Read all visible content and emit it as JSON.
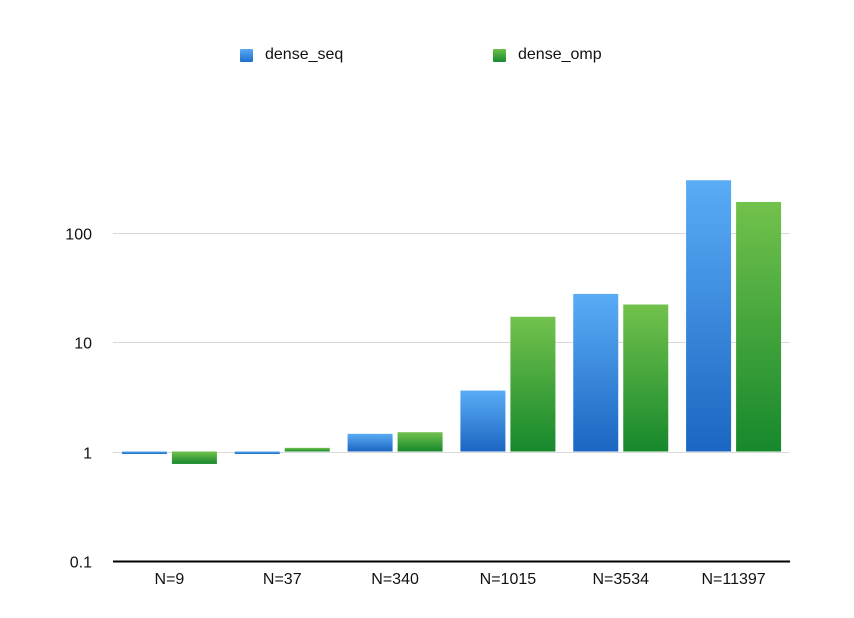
{
  "chart_data": {
    "type": "bar",
    "title": "",
    "xlabel": "",
    "ylabel": "",
    "y_scale": "log",
    "ylim": [
      0.1,
      1000
    ],
    "yticks": [
      "0.1",
      "1",
      "10",
      "100"
    ],
    "grid": true,
    "legend_position": "top",
    "categories": [
      "N=9",
      "N=37",
      "N=340",
      "N=1015",
      "N=3534",
      "N=11397"
    ],
    "series": [
      {
        "name": "dense_seq",
        "color": "#3a8ee6",
        "values": [
          0.97,
          1.0,
          1.45,
          3.6,
          27.5,
          300
        ]
      },
      {
        "name": "dense_omp",
        "color": "#3aa83a",
        "values": [
          0.77,
          1.08,
          1.5,
          17.0,
          22.0,
          190
        ]
      }
    ]
  }
}
